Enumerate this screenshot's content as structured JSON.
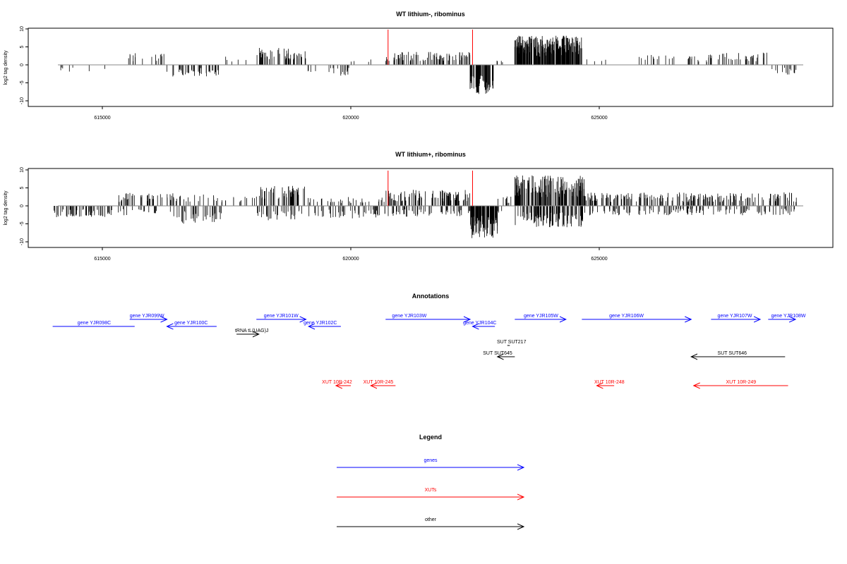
{
  "chart_data": [
    {
      "type": "bar",
      "title": "WT lithium-, ribominus",
      "xlabel": "",
      "ylabel": "log2 tag density",
      "xlim": [
        614000,
        629700
      ],
      "ylim": [
        -11,
        11
      ],
      "x_ticks": [
        "615000",
        "620000",
        "625000"
      ],
      "y_ticks": [
        "10",
        "5",
        "0",
        "-5",
        "-10"
      ],
      "x_tick_values": [
        615000,
        620000,
        625000
      ],
      "y_tick_values": [
        10,
        5,
        0,
        -5,
        -10
      ],
      "grid": false,
      "markers": [
        620750,
        622450
      ],
      "marker_color": "#ff0000",
      "segments": [
        {
          "x0": 614000,
          "x1": 614300,
          "v": -1.2,
          "density": 0.02,
          "both": false
        },
        {
          "x0": 614300,
          "x1": 614800,
          "v": -1.5,
          "density": 0.012,
          "both": false
        },
        {
          "x0": 615000,
          "x1": 615050,
          "v": -2.8,
          "density": 0.06,
          "both": false
        },
        {
          "x0": 615500,
          "x1": 616300,
          "v": 2.8,
          "density": 0.05,
          "both": false
        },
        {
          "x0": 616300,
          "x1": 617400,
          "v": -2.6,
          "density": 0.09,
          "both": false
        },
        {
          "x0": 617400,
          "x1": 618000,
          "v": 2.4,
          "density": 0.02,
          "both": false
        },
        {
          "x0": 618100,
          "x1": 619100,
          "v": 3.8,
          "density": 0.12,
          "both": false
        },
        {
          "x0": 619100,
          "x1": 620000,
          "v": -2.4,
          "density": 0.05,
          "both": false
        },
        {
          "x0": 620000,
          "x1": 620700,
          "v": 1.8,
          "density": 0.015,
          "both": false
        },
        {
          "x0": 620700,
          "x1": 622400,
          "v": 2.9,
          "density": 0.12,
          "both": false
        },
        {
          "x0": 622400,
          "x1": 622900,
          "v": -6.5,
          "density": 0.35,
          "both": false
        },
        {
          "x0": 622900,
          "x1": 623300,
          "v": 1.5,
          "density": 0.03,
          "both": false
        },
        {
          "x0": 623300,
          "x1": 624650,
          "v": 6.5,
          "density": 0.45,
          "both": false
        },
        {
          "x0": 624650,
          "x1": 625600,
          "v": 1.8,
          "density": 0.01,
          "both": false
        },
        {
          "x0": 625800,
          "x1": 627200,
          "v": 2.2,
          "density": 0.04,
          "both": false
        },
        {
          "x0": 627200,
          "x1": 628400,
          "v": 2.7,
          "density": 0.07,
          "both": false
        },
        {
          "x0": 628400,
          "x1": 629000,
          "v": -2.2,
          "density": 0.05,
          "both": false
        }
      ]
    },
    {
      "type": "bar",
      "title": "WT lithium+, ribominus",
      "xlabel": "",
      "ylabel": "log2 tag density",
      "xlim": [
        614000,
        629700
      ],
      "ylim": [
        -11,
        11
      ],
      "x_ticks": [
        "615000",
        "620000",
        "625000"
      ],
      "y_ticks": [
        "10",
        "5",
        "0",
        "-5",
        "-10"
      ],
      "x_tick_values": [
        615000,
        620000,
        625000
      ],
      "y_tick_values": [
        10,
        5,
        0,
        -5,
        -10
      ],
      "grid": false,
      "markers": [
        620750,
        622450
      ],
      "marker_color": "#ff0000",
      "segments": [
        {
          "x0": 614000,
          "x1": 615200,
          "v": -2.6,
          "density": 0.12,
          "both": false
        },
        {
          "x0": 615300,
          "x1": 616400,
          "v": 3.0,
          "density": 0.12,
          "both": true
        },
        {
          "x0": 616400,
          "x1": 617400,
          "v": -4.0,
          "density": 0.14,
          "both": true
        },
        {
          "x0": 617400,
          "x1": 618100,
          "v": 2.2,
          "density": 0.05,
          "both": false
        },
        {
          "x0": 618100,
          "x1": 619100,
          "v": 4.6,
          "density": 0.2,
          "both": true
        },
        {
          "x0": 619100,
          "x1": 620700,
          "v": -2.8,
          "density": 0.12,
          "both": true
        },
        {
          "x0": 620700,
          "x1": 622400,
          "v": 3.6,
          "density": 0.2,
          "both": true
        },
        {
          "x0": 622400,
          "x1": 622950,
          "v": -7.2,
          "density": 0.4,
          "both": false
        },
        {
          "x0": 622950,
          "x1": 623300,
          "v": 2.2,
          "density": 0.08,
          "both": true
        },
        {
          "x0": 623300,
          "x1": 624700,
          "v": 6.8,
          "density": 0.45,
          "both": true
        },
        {
          "x0": 624700,
          "x1": 629000,
          "v": 3.0,
          "density": 0.18,
          "both": true
        }
      ]
    }
  ],
  "annotations": {
    "title": "Annotations",
    "items": [
      {
        "label": "gene YJR098C",
        "x1": 614000,
        "x2": 615650,
        "dir": "none",
        "row": "y463",
        "label_x": 614500,
        "color": "#0000ff"
      },
      {
        "label": "gene YJR099W",
        "x1": 615550,
        "x2": 616300,
        "dir": "right",
        "row": "y453",
        "label_x": 615550,
        "color": "#0000ff"
      },
      {
        "label": "gene YJR100C",
        "x1": 616300,
        "x2": 617300,
        "dir": "left",
        "row": "y463",
        "label_x": 616450,
        "color": "#0000ff"
      },
      {
        "label": "gene YJR101W",
        "x1": 618100,
        "x2": 619100,
        "dir": "right",
        "row": "y453",
        "label_x": 618250,
        "color": "#0000ff"
      },
      {
        "label": "gene YJR102C",
        "x1": 619150,
        "x2": 619800,
        "dir": "left",
        "row": "y463",
        "label_x": 619050,
        "color": "#0000ff"
      },
      {
        "label": "gene YJR103W",
        "x1": 620700,
        "x2": 622400,
        "dir": "right",
        "row": "y453",
        "label_x": 620830,
        "color": "#0000ff"
      },
      {
        "label": "gene YJR104C",
        "x1": 622450,
        "x2": 622900,
        "dir": "left",
        "row": "y463",
        "label_x": 622260,
        "color": "#0000ff"
      },
      {
        "label": "gene YJR105W",
        "x1": 623300,
        "x2": 624330,
        "dir": "right",
        "row": "y453",
        "label_x": 623480,
        "color": "#0000ff"
      },
      {
        "label": "gene YJR106W",
        "x1": 624650,
        "x2": 626850,
        "dir": "right",
        "row": "y453",
        "label_x": 625200,
        "color": "#0000ff"
      },
      {
        "label": "gene YJR107W",
        "x1": 627250,
        "x2": 628240,
        "dir": "right",
        "row": "y453",
        "label_x": 627380,
        "color": "#0000ff"
      },
      {
        "label": "gene YJR108W",
        "x1": 628400,
        "x2": 628950,
        "dir": "right",
        "row": "y453",
        "label_x": 628460,
        "color": "#0000ff"
      },
      {
        "label": "tRNA tL(UAG)J",
        "x1": 617700,
        "x2": 618150,
        "dir": "right",
        "row": "y474",
        "label_x": 617670,
        "color": "#000000"
      },
      {
        "label": "SUT SUT217",
        "x1": 623150,
        "x2": 623200,
        "dir": "none",
        "row": "y490",
        "label_x": 622940,
        "color": "#000000"
      },
      {
        "label": "SUT SUT645",
        "x1": 622950,
        "x2": 623300,
        "dir": "left",
        "row": "y506",
        "label_x": 622660,
        "color": "#000000"
      },
      {
        "label": "SUT SUT646",
        "x1": 626850,
        "x2": 628740,
        "dir": "left",
        "row": "y506",
        "label_x": 627380,
        "color": "#000000"
      },
      {
        "label": "XUT 10R-242",
        "x1": 619700,
        "x2": 620000,
        "dir": "left",
        "row": "y547",
        "label_x": 619420,
        "color": "#ff0000"
      },
      {
        "label": "XUT 10R-245",
        "x1": 620400,
        "x2": 620900,
        "dir": "left",
        "row": "y547",
        "label_x": 620250,
        "color": "#ff0000"
      },
      {
        "label": "XUT 10R-248",
        "x1": 624950,
        "x2": 625300,
        "dir": "left",
        "row": "y547",
        "label_x": 624900,
        "color": "#ff0000"
      },
      {
        "label": "XUT 10R-249",
        "x1": 626900,
        "x2": 628800,
        "dir": "left",
        "row": "y547",
        "label_x": 627550,
        "color": "#ff0000"
      }
    ]
  },
  "legend": {
    "title": "Legend",
    "items": [
      {
        "label": "genes",
        "color": "#0000ff"
      },
      {
        "label": "XUTs",
        "color": "#ff0000"
      },
      {
        "label": "other",
        "color": "#000000"
      }
    ]
  }
}
